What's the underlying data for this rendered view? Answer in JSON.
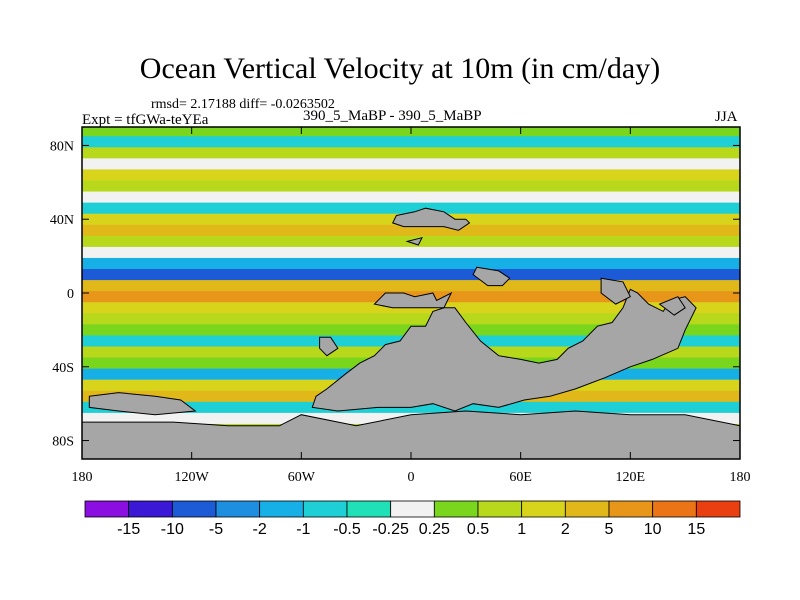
{
  "chart_data": {
    "type": "heatmap",
    "title": "Ocean Vertical Velocity at 10m (in cm/day)",
    "stats_text": "rmsd= 2.17188 diff= -0.0263502",
    "expt_text": "Expt = tfGWa-teYEa",
    "cases_text": "390_5_MaBP - 390_5_MaBP",
    "season": "JJA",
    "units": "cm/day",
    "x_range": [
      -180,
      180
    ],
    "y_range": [
      -90,
      90
    ],
    "x_ticks": [
      {
        "value": -180,
        "label": "180"
      },
      {
        "value": -120,
        "label": "120W"
      },
      {
        "value": -60,
        "label": "60W"
      },
      {
        "value": 0,
        "label": "0"
      },
      {
        "value": 60,
        "label": "60E"
      },
      {
        "value": 120,
        "label": "120E"
      },
      {
        "value": 180,
        "label": "180"
      }
    ],
    "y_ticks": [
      {
        "value": 80,
        "label": "80N"
      },
      {
        "value": 40,
        "label": "40N"
      },
      {
        "value": 0,
        "label": "0"
      },
      {
        "value": -40,
        "label": "40S"
      },
      {
        "value": -80,
        "label": "80S"
      }
    ],
    "colorbar": {
      "colors": [
        "#8a0fe0",
        "#3b18d6",
        "#1c5ad6",
        "#1e8ee0",
        "#17b0e6",
        "#1ecfd6",
        "#20e0b8",
        "#f2f2f2",
        "#7ad61c",
        "#b8d81c",
        "#d8d41c",
        "#e0b81a",
        "#e8961a",
        "#ea7416",
        "#e84010"
      ],
      "labels": [
        "-15",
        "-10",
        "-5",
        "-2",
        "-1",
        "-0.5",
        "-0.25",
        "0.25",
        "0.5",
        "1",
        "2",
        "5",
        "10",
        "15"
      ]
    },
    "zonal_bands": [
      {
        "lat": 88,
        "level": 8
      },
      {
        "lat": 82,
        "level": 5
      },
      {
        "lat": 76,
        "level": 9
      },
      {
        "lat": 70,
        "level": 7
      },
      {
        "lat": 64,
        "level": 10
      },
      {
        "lat": 58,
        "level": 9
      },
      {
        "lat": 52,
        "level": 7
      },
      {
        "lat": 46,
        "level": 5
      },
      {
        "lat": 40,
        "level": 10
      },
      {
        "lat": 34,
        "level": 11
      },
      {
        "lat": 28,
        "level": 9
      },
      {
        "lat": 22,
        "level": 7
      },
      {
        "lat": 16,
        "level": 4
      },
      {
        "lat": 10,
        "level": 2
      },
      {
        "lat": 4,
        "level": 11
      },
      {
        "lat": -2,
        "level": 12
      },
      {
        "lat": -8,
        "level": 10
      },
      {
        "lat": -14,
        "level": 9
      },
      {
        "lat": -20,
        "level": 8
      },
      {
        "lat": -26,
        "level": 5
      },
      {
        "lat": -32,
        "level": 9
      },
      {
        "lat": -38,
        "level": 8
      },
      {
        "lat": -44,
        "level": 4
      },
      {
        "lat": -50,
        "level": 10
      },
      {
        "lat": -56,
        "level": 11
      },
      {
        "lat": -62,
        "level": 5
      },
      {
        "lat": -68,
        "level": 7
      },
      {
        "lat": -74,
        "level": 9
      },
      {
        "lat": -80,
        "level": 8
      },
      {
        "lat": -86,
        "level": 9
      }
    ],
    "land": [
      [
        [
          -20,
          -6
        ],
        [
          -14,
          0
        ],
        [
          -4,
          0
        ],
        [
          2,
          -2
        ],
        [
          12,
          0
        ],
        [
          14,
          -4
        ],
        [
          22,
          0
        ],
        [
          18,
          -8
        ],
        [
          12,
          -10
        ],
        [
          8,
          -18
        ],
        [
          0,
          -18
        ],
        [
          -6,
          -26
        ],
        [
          -14,
          -28
        ],
        [
          -20,
          -34
        ],
        [
          -28,
          -38
        ],
        [
          -36,
          -44
        ],
        [
          -46,
          -52
        ],
        [
          -52,
          -56
        ],
        [
          -54,
          -62
        ],
        [
          -40,
          -64
        ],
        [
          -18,
          -62
        ],
        [
          0,
          -62
        ],
        [
          12,
          -60
        ],
        [
          24,
          -64
        ],
        [
          34,
          -60
        ],
        [
          48,
          -62
        ],
        [
          62,
          -58
        ],
        [
          76,
          -56
        ],
        [
          90,
          -52
        ],
        [
          106,
          -46
        ],
        [
          120,
          -40
        ],
        [
          132,
          -36
        ],
        [
          146,
          -30
        ],
        [
          150,
          -20
        ],
        [
          156,
          -8
        ],
        [
          150,
          -2
        ],
        [
          142,
          -4
        ],
        [
          138,
          -10
        ],
        [
          130,
          -6
        ],
        [
          124,
          0
        ],
        [
          120,
          2
        ],
        [
          116,
          -8
        ],
        [
          110,
          -16
        ],
        [
          102,
          -18
        ],
        [
          94,
          -26
        ],
        [
          86,
          -30
        ],
        [
          80,
          -36
        ],
        [
          70,
          -38
        ],
        [
          60,
          -36
        ],
        [
          48,
          -34
        ],
        [
          38,
          -26
        ],
        [
          30,
          -16
        ],
        [
          24,
          -8
        ],
        [
          6,
          -8
        ],
        [
          -10,
          -8
        ]
      ],
      [
        [
          -180,
          -90
        ],
        [
          180,
          -90
        ],
        [
          180,
          -72
        ],
        [
          150,
          -66
        ],
        [
          120,
          -66
        ],
        [
          90,
          -64
        ],
        [
          60,
          -66
        ],
        [
          30,
          -64
        ],
        [
          0,
          -66
        ],
        [
          -30,
          -72
        ],
        [
          -60,
          -66
        ],
        [
          -72,
          -72
        ],
        [
          -100,
          -72
        ],
        [
          -130,
          -70
        ],
        [
          -160,
          -70
        ],
        [
          -180,
          -70
        ]
      ],
      [
        [
          -176,
          -56
        ],
        [
          -160,
          -54
        ],
        [
          -140,
          -56
        ],
        [
          -126,
          -58
        ],
        [
          -118,
          -64
        ],
        [
          -140,
          -66
        ],
        [
          -160,
          -64
        ],
        [
          -176,
          -62
        ]
      ],
      [
        [
          -50,
          -24
        ],
        [
          -44,
          -24
        ],
        [
          -40,
          -30
        ],
        [
          -46,
          -34
        ],
        [
          -50,
          -30
        ]
      ],
      [
        [
          -8,
          42
        ],
        [
          2,
          44
        ],
        [
          8,
          46
        ],
        [
          18,
          44
        ],
        [
          24,
          40
        ],
        [
          30,
          40
        ],
        [
          32,
          38
        ],
        [
          26,
          34
        ],
        [
          18,
          36
        ],
        [
          8,
          36
        ],
        [
          -4,
          36
        ],
        [
          -10,
          38
        ]
      ],
      [
        [
          -2,
          28
        ],
        [
          6,
          30
        ],
        [
          4,
          26
        ]
      ],
      [
        [
          36,
          14
        ],
        [
          48,
          12
        ],
        [
          54,
          8
        ],
        [
          50,
          4
        ],
        [
          42,
          4
        ],
        [
          34,
          10
        ]
      ],
      [
        [
          104,
          8
        ],
        [
          116,
          6
        ],
        [
          120,
          -2
        ],
        [
          112,
          -6
        ],
        [
          104,
          0
        ]
      ],
      [
        [
          136,
          -6
        ],
        [
          146,
          -2
        ],
        [
          150,
          -8
        ],
        [
          144,
          -12
        ]
      ]
    ]
  }
}
